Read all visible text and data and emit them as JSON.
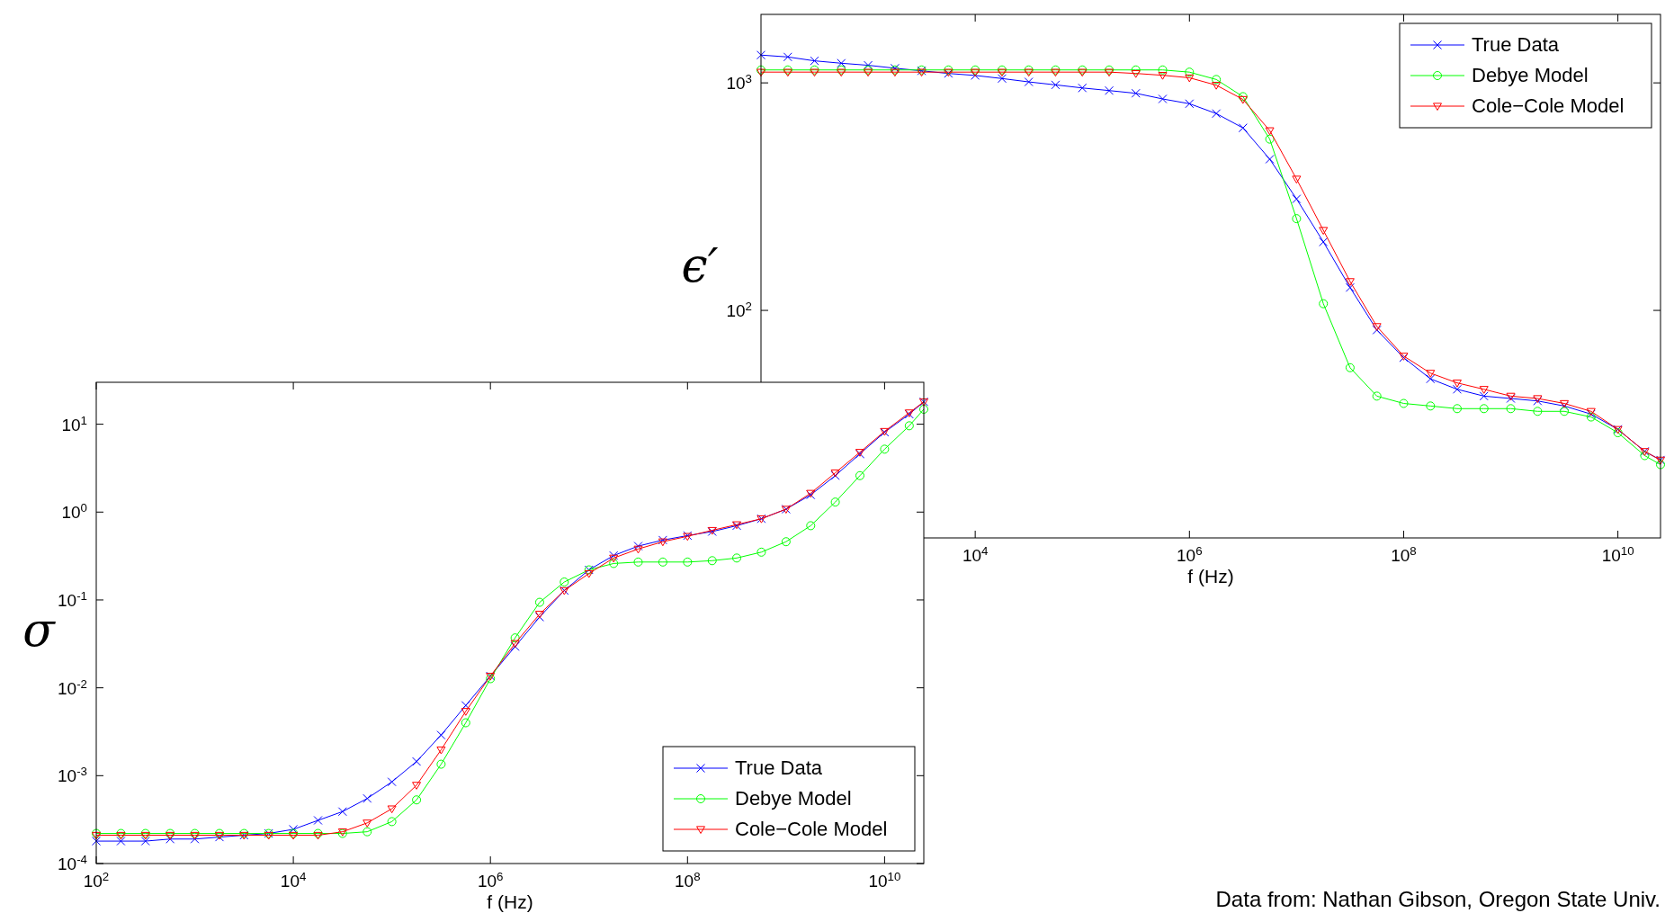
{
  "chart_data": [
    {
      "type": "line",
      "ylabel": "ϵ′",
      "xlabel": "f (Hz)",
      "log": "xy",
      "legend": "top right",
      "xlim": [
        100,
        25000000000
      ],
      "ylim": [
        10,
        2000
      ],
      "xticks": [
        {
          "value": 10000,
          "label": "10$^{4}$"
        },
        {
          "value": 1000000,
          "label": "10$^{6}$"
        },
        {
          "value": 100000000,
          "label": "10$^{8}$"
        },
        {
          "value": 10000000000,
          "label": "10$^{10}$"
        }
      ],
      "yticks": [
        {
          "value": 100,
          "label": "10$^{2}$"
        },
        {
          "value": 1000,
          "label": "10$^{3}$"
        }
      ],
      "x": [
        100,
        178,
        316,
        562,
        1000,
        1780,
        3160,
        5620,
        10000,
        17800,
        31600,
        56200,
        100000,
        178000,
        316000,
        562000,
        1000000,
        1780000,
        3160000,
        5620000,
        10000000,
        17800000,
        31600000,
        56200000,
        100000000,
        178000000,
        316000000,
        562000000,
        1000000000,
        1780000000,
        3160000000,
        5620000000,
        10000000000,
        17800000000,
        25000000000
      ],
      "series": [
        {
          "name": "True Data",
          "color": "#0000ff",
          "marker": "cross",
          "values": [
            1325,
            1300,
            1250,
            1220,
            1195,
            1160,
            1130,
            1100,
            1078,
            1045,
            1010,
            980,
            950,
            925,
            900,
            850,
            810,
            733,
            634,
            462,
            309,
            200,
            126,
            82,
            62,
            50,
            45,
            42,
            41,
            40,
            38,
            35,
            30,
            24,
            22
          ]
        },
        {
          "name": "Debye Model",
          "color": "#00ff00",
          "marker": "circle",
          "values": [
            1140,
            1140,
            1140,
            1140,
            1140,
            1140,
            1140,
            1140,
            1140,
            1140,
            1140,
            1140,
            1140,
            1140,
            1140,
            1140,
            1115,
            1035,
            870,
            566,
            253,
            107,
            56,
            42,
            39,
            38,
            37,
            37,
            37,
            36,
            36,
            34,
            29,
            23,
            21
          ]
        },
        {
          "name": "Cole−Cole Model",
          "color": "#ff0000",
          "marker": "triangle",
          "values": [
            1115,
            1115,
            1115,
            1115,
            1115,
            1115,
            1115,
            1115,
            1115,
            1115,
            1115,
            1115,
            1115,
            1115,
            1100,
            1080,
            1053,
            977,
            846,
            617,
            378,
            225,
            134,
            85,
            63,
            53,
            48,
            45,
            42,
            41,
            39,
            36,
            30,
            24,
            22
          ]
        }
      ]
    },
    {
      "type": "line",
      "ylabel": "σ",
      "xlabel": "f (Hz)",
      "log": "xy",
      "legend": "bottom right",
      "xlim": [
        100,
        25000000000
      ],
      "ylim": [
        0.0001,
        30
      ],
      "xticks": [
        {
          "value": 100,
          "label": "10$^{2}$"
        },
        {
          "value": 10000,
          "label": "10$^{4}$"
        },
        {
          "value": 1000000,
          "label": "10$^{6}$"
        },
        {
          "value": 100000000,
          "label": "10$^{8}$"
        },
        {
          "value": 10000000000,
          "label": "10$^{10}$"
        }
      ],
      "yticks": [
        {
          "value": 0.0001,
          "label": "10$^{-4}$"
        },
        {
          "value": 0.001,
          "label": "10$^{-3}$"
        },
        {
          "value": 0.01,
          "label": "10$^{-2}$"
        },
        {
          "value": 0.1,
          "label": "10$^{-1}$"
        },
        {
          "value": 1,
          "label": "10$^{0}$"
        },
        {
          "value": 10,
          "label": "10$^{1}$"
        }
      ],
      "annotations": [
        "Data from: Nathan Gibson, Oregon State Univ."
      ],
      "x": [
        100,
        178,
        316,
        562,
        1000,
        1780,
        3160,
        5620,
        10000,
        17800,
        31600,
        56200,
        100000,
        178000,
        316000,
        562000,
        1000000,
        1780000,
        3160000,
        5620000,
        10000000,
        17800000,
        31600000,
        56200000,
        100000000,
        178000000,
        316000000,
        562000000,
        1000000000,
        1780000000,
        3160000000,
        5620000000,
        10000000000,
        17800000000,
        25000000000
      ],
      "series": [
        {
          "name": "True Data",
          "color": "#0000ff",
          "marker": "cross",
          "values": [
            0.00018,
            0.00018,
            0.00018,
            0.00019,
            0.00019,
            0.0002,
            0.00021,
            0.00022,
            0.000245,
            0.00031,
            0.00039,
            0.00055,
            0.00085,
            0.00145,
            0.0029,
            0.0063,
            0.0136,
            0.0295,
            0.064,
            0.128,
            0.22,
            0.32,
            0.41,
            0.48,
            0.54,
            0.6,
            0.7,
            0.84,
            1.08,
            1.57,
            2.6,
            4.6,
            8.1,
            13,
            18
          ]
        },
        {
          "name": "Debye Model",
          "color": "#00ff00",
          "marker": "circle",
          "values": [
            0.00022,
            0.00022,
            0.00022,
            0.00022,
            0.00022,
            0.00022,
            0.00022,
            0.00022,
            0.00022,
            0.00022,
            0.00022,
            0.00023,
            0.0003,
            0.00053,
            0.00135,
            0.004,
            0.0127,
            0.037,
            0.094,
            0.16,
            0.22,
            0.26,
            0.27,
            0.27,
            0.27,
            0.28,
            0.3,
            0.35,
            0.46,
            0.7,
            1.3,
            2.6,
            5.2,
            9.6,
            14.8
          ]
        },
        {
          "name": "Cole−Cole Model",
          "color": "#ff0000",
          "marker": "triangle",
          "values": [
            0.00021,
            0.00021,
            0.00021,
            0.00021,
            0.00021,
            0.00021,
            0.00021,
            0.00021,
            0.00021,
            0.00021,
            0.00023,
            0.00029,
            0.00042,
            0.00078,
            0.00197,
            0.0054,
            0.0136,
            0.032,
            0.069,
            0.128,
            0.2,
            0.3,
            0.38,
            0.46,
            0.53,
            0.62,
            0.72,
            0.84,
            1.08,
            1.64,
            2.8,
            4.8,
            8.3,
            13.5,
            18
          ]
        }
      ]
    }
  ]
}
